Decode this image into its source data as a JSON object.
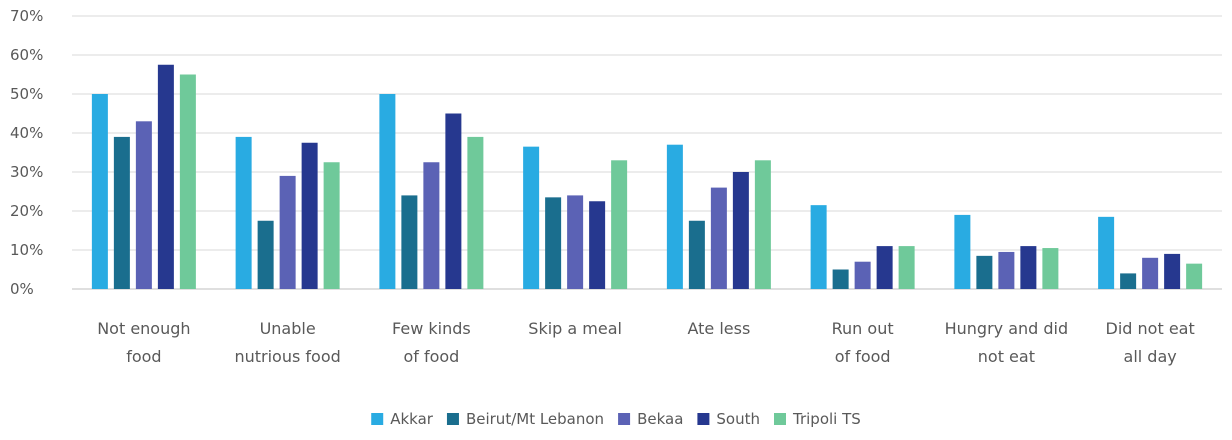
{
  "chart_data": {
    "type": "bar",
    "title": "",
    "xlabel": "",
    "ylabel": "",
    "ylim": [
      0,
      70
    ],
    "yticks": [
      "0%",
      "10%",
      "20%",
      "30%",
      "40%",
      "50%",
      "60%",
      "70%"
    ],
    "grid": true,
    "legend_position": "bottom",
    "categories": [
      [
        "Not enough",
        "food"
      ],
      [
        "Unable",
        "nutrious food"
      ],
      [
        "Few kinds",
        "of food"
      ],
      [
        "Skip a meal"
      ],
      [
        "Ate less"
      ],
      [
        "Run out",
        "of food"
      ],
      [
        "Hungry and did",
        "not eat"
      ],
      [
        "Did not eat",
        "all day"
      ]
    ],
    "series": [
      {
        "name": "Akkar",
        "color": "#29ABE2",
        "values": [
          50,
          39,
          50,
          36.5,
          37,
          21.5,
          19,
          18.5
        ]
      },
      {
        "name": "Beirut/Mt Lebanon",
        "color": "#1A6E8E",
        "values": [
          39,
          17.5,
          24,
          23.5,
          17.5,
          5,
          8.5,
          4
        ]
      },
      {
        "name": "Bekaa",
        "color": "#5B62B5",
        "values": [
          43,
          29,
          32.5,
          24,
          26,
          7,
          9.5,
          8
        ]
      },
      {
        "name": "South",
        "color": "#26388F",
        "values": [
          57.5,
          37.5,
          45,
          22.5,
          30,
          11,
          11,
          9
        ]
      },
      {
        "name": "Tripoli TS",
        "color": "#6FC99A",
        "values": [
          55,
          32.5,
          39,
          33,
          33,
          11,
          10.5,
          6.5
        ]
      }
    ]
  }
}
